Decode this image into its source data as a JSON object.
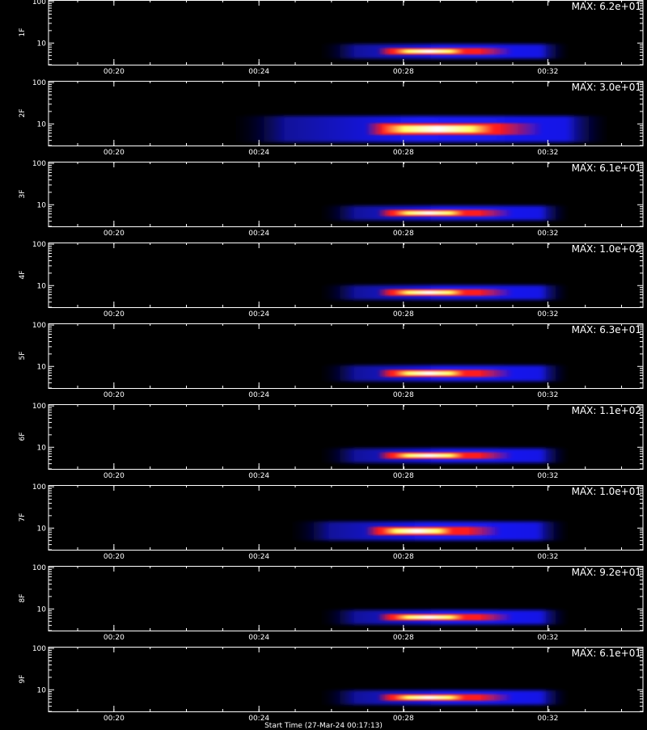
{
  "chart_data": {
    "type": "heatmap",
    "colormap": [
      "#000000",
      "#1a1aff",
      "#ff1a1a",
      "#ffff66",
      "#ffffff"
    ],
    "x_tick_labels": [
      "00:20",
      "00:24",
      "00:28",
      "00:32"
    ],
    "y_tick_labels": [
      "10",
      "100"
    ],
    "ylim": [
      3,
      110
    ],
    "y_scale": "log",
    "panels": [
      {
        "label": "1F",
        "max_text": "MAX: 6.2e+01",
        "y_center": 6.3,
        "x_start": 0.45,
        "x_end": 0.88,
        "core_start": 0.58,
        "core_end": 0.7,
        "spread": 1.0
      },
      {
        "label": "2F",
        "max_text": "MAX: 3.0e+01",
        "y_center": 7.5,
        "x_start": 0.3,
        "x_end": 0.95,
        "core_start": 0.56,
        "core_end": 0.75,
        "spread": 1.8
      },
      {
        "label": "3F",
        "max_text": "MAX: 6.1e+01",
        "y_center": 6.3,
        "x_start": 0.45,
        "x_end": 0.88,
        "core_start": 0.58,
        "core_end": 0.7,
        "spread": 1.0
      },
      {
        "label": "4F",
        "max_text": "MAX: 1.0e+02",
        "y_center": 6.8,
        "x_start": 0.45,
        "x_end": 0.88,
        "core_start": 0.58,
        "core_end": 0.7,
        "spread": 1.0
      },
      {
        "label": "5F",
        "max_text": "MAX: 6.3e+01",
        "y_center": 6.8,
        "x_start": 0.45,
        "x_end": 0.88,
        "core_start": 0.58,
        "core_end": 0.7,
        "spread": 1.1
      },
      {
        "label": "6F",
        "max_text": "MAX: 1.1e+02",
        "y_center": 6.3,
        "x_start": 0.45,
        "x_end": 0.88,
        "core_start": 0.58,
        "core_end": 0.7,
        "spread": 1.0
      },
      {
        "label": "7F",
        "max_text": "MAX: 1.0e+01",
        "y_center": 8.5,
        "x_start": 0.4,
        "x_end": 0.88,
        "core_start": 0.56,
        "core_end": 0.68,
        "spread": 1.3
      },
      {
        "label": "8F",
        "max_text": "MAX: 9.2e+01",
        "y_center": 6.3,
        "x_start": 0.45,
        "x_end": 0.88,
        "core_start": 0.58,
        "core_end": 0.7,
        "spread": 1.0
      },
      {
        "label": "9F",
        "max_text": "MAX: 6.1e+01",
        "y_center": 6.5,
        "x_start": 0.45,
        "x_end": 0.88,
        "core_start": 0.58,
        "core_end": 0.7,
        "spread": 1.0
      }
    ],
    "footer_text": "Start Time (27-Mar-24 00:17:13)"
  }
}
